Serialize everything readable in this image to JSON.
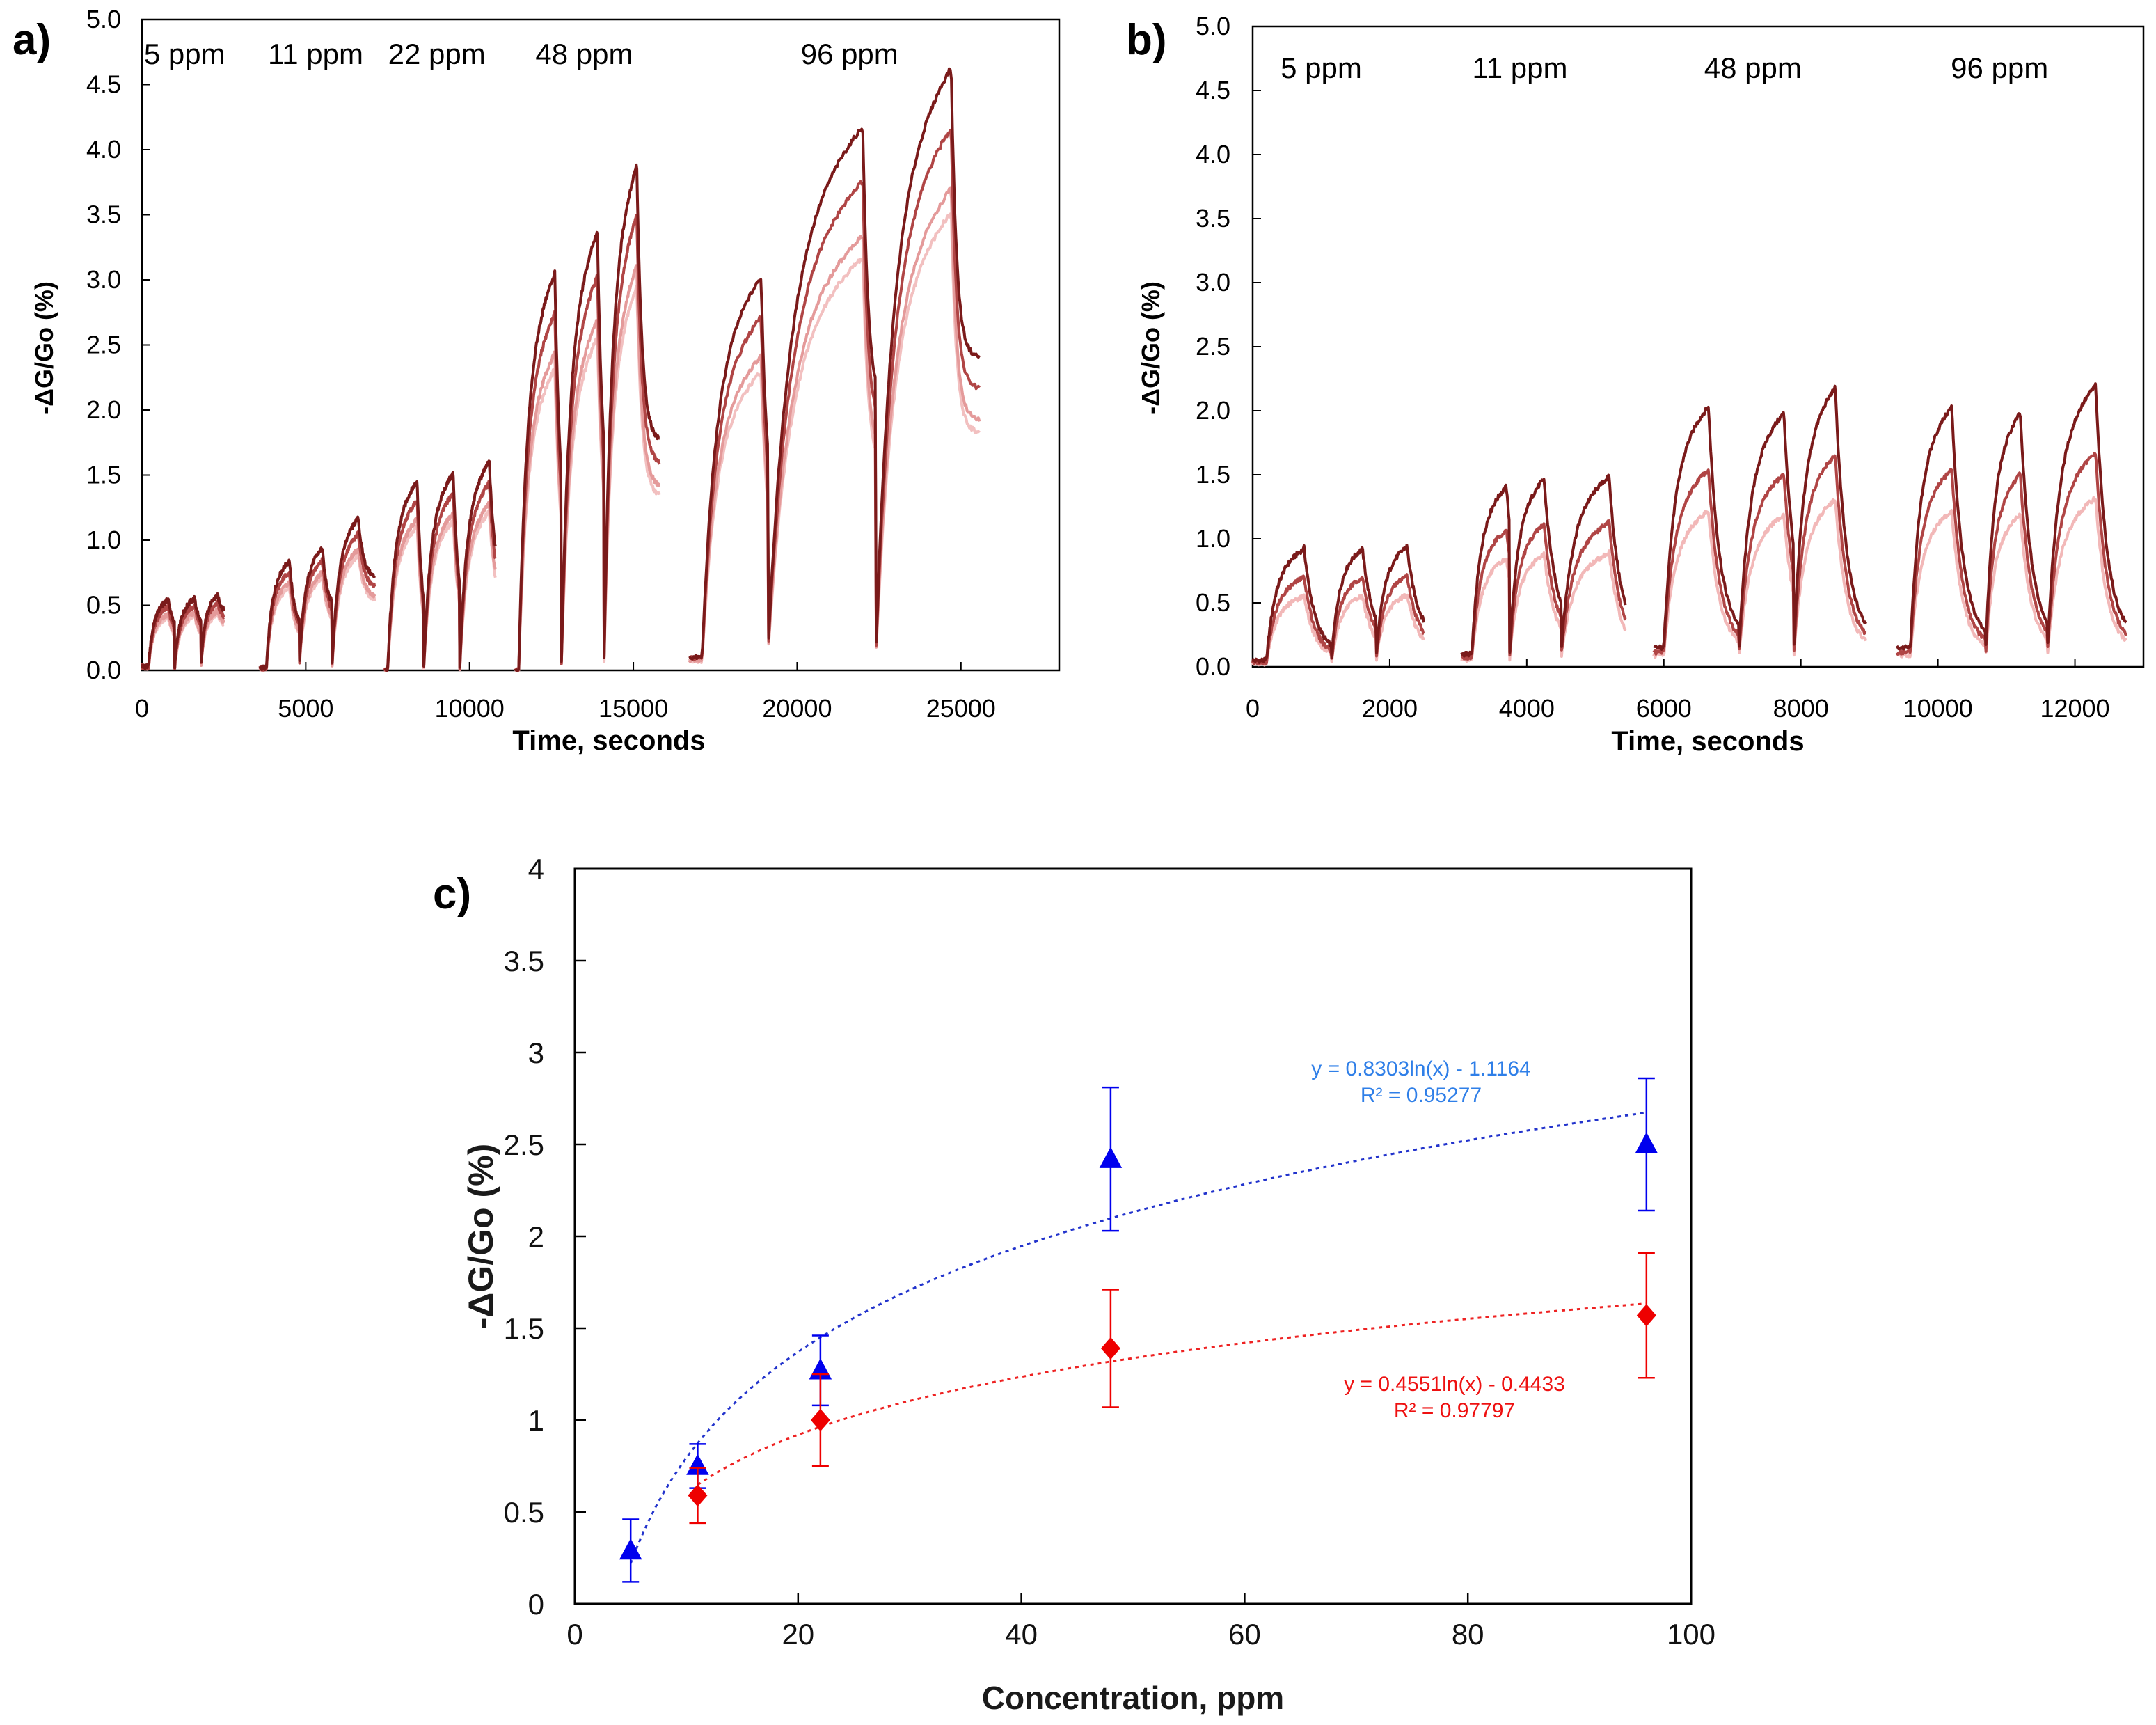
{
  "chart_data": [
    {
      "panel": "a)",
      "type": "line",
      "xlabel": "Time, seconds",
      "ylabel": "-ΔG/Go (%)",
      "xlim": [
        0,
        28000
      ],
      "ylim": [
        0,
        5
      ],
      "xticks": [
        0,
        5000,
        10000,
        15000,
        20000,
        25000
      ],
      "yticks": [
        "0.0",
        "0.5",
        "1.0",
        "1.5",
        "2.0",
        "2.5",
        "3.0",
        "3.5",
        "4.0",
        "4.5",
        "5.0"
      ],
      "grid": false,
      "concentration_labels": [
        {
          "text": "5 ppm",
          "x": 1300
        },
        {
          "text": "11 ppm",
          "x": 5300
        },
        {
          "text": "22 ppm",
          "x": 9000
        },
        {
          "text": "48 ppm",
          "x": 13500
        },
        {
          "text": "96 ppm",
          "x": 21600
        }
      ],
      "series_colors": [
        "#7a1a1a",
        "#b04545",
        "#e49a9a",
        "#f2c0c0"
      ],
      "series_scales": [
        1.0,
        0.9,
        0.8,
        0.76
      ],
      "segments": [
        {
          "start": 0,
          "end": 2500,
          "base": 0.03,
          "pulses": [
            {
              "on": 200,
              "off": 800,
              "peak": 0.55,
              "rec": 0.28
            },
            {
              "on": 1000,
              "off": 1600,
              "peak": 0.56,
              "rec": 0.3
            },
            {
              "on": 1800,
              "off": 2300,
              "peak": 0.58,
              "rec": 0.42
            }
          ]
        },
        {
          "start": 3600,
          "end": 7100,
          "base": 0.02,
          "pulses": [
            {
              "on": 3800,
              "off": 4500,
              "peak": 0.85,
              "rec": 0.3
            },
            {
              "on": 4800,
              "off": 5500,
              "peak": 0.95,
              "rec": 0.45
            },
            {
              "on": 5800,
              "off": 6600,
              "peak": 1.18,
              "rec": 0.7
            }
          ]
        },
        {
          "start": 7400,
          "end": 10800,
          "base": 0.0,
          "pulses": [
            {
              "on": 7500,
              "off": 8400,
              "peak": 1.47,
              "rec": 0.15
            },
            {
              "on": 8600,
              "off": 9500,
              "peak": 1.53,
              "rec": 0.3
            },
            {
              "on": 9700,
              "off": 10600,
              "peak": 1.62,
              "rec": 0.65
            }
          ]
        },
        {
          "start": 11400,
          "end": 15800,
          "base": 0.0,
          "pulses": [
            {
              "on": 11500,
              "off": 12600,
              "peak": 3.08,
              "rec": 0.9
            },
            {
              "on": 12800,
              "off": 13900,
              "peak": 3.4,
              "rec": 1.1
            },
            {
              "on": 14100,
              "off": 15100,
              "peak": 3.92,
              "rec": 1.75
            }
          ]
        },
        {
          "start": 16700,
          "end": 25600,
          "base": 0.1,
          "pulses": [
            {
              "on": 17100,
              "off": 18900,
              "peak": 3.05,
              "rec": 1.2
            },
            {
              "on": 19100,
              "off": 22000,
              "peak": 4.22,
              "rec": 2.05
            },
            {
              "on": 22400,
              "off": 24700,
              "peak": 4.68,
              "rec": 2.4
            }
          ]
        }
      ]
    },
    {
      "panel": "b)",
      "type": "line",
      "xlabel": "Time, seconds",
      "ylabel": "-ΔG/Go (%)",
      "xlim": [
        0,
        13000
      ],
      "ylim": [
        0,
        5
      ],
      "xticks": [
        0,
        2000,
        4000,
        6000,
        8000,
        10000,
        12000
      ],
      "yticks": [
        "0.0",
        "0.5",
        "1.0",
        "1.5",
        "2.0",
        "2.5",
        "3.0",
        "3.5",
        "4.0",
        "4.5",
        "5.0"
      ],
      "grid": false,
      "concentration_labels": [
        {
          "text": "5 ppm",
          "x": 1000
        },
        {
          "text": "11 ppm",
          "x": 3900
        },
        {
          "text": "48 ppm",
          "x": 7300
        },
        {
          "text": "96 ppm",
          "x": 10900
        }
      ],
      "series_colors": [
        "#7a1a1a",
        "#b04545",
        "#f2b8b8"
      ],
      "series_scales": [
        1.0,
        0.76,
        0.6
      ],
      "segments": [
        {
          "start": 0,
          "end": 2500,
          "base": 0.05,
          "pulses": [
            {
              "on": 200,
              "off": 750,
              "peak": 0.93,
              "rec": 0.1
            },
            {
              "on": 1150,
              "off": 1600,
              "peak": 0.93,
              "rec": 0.15
            },
            {
              "on": 1800,
              "off": 2250,
              "peak": 0.95,
              "rec": 0.2
            }
          ]
        },
        {
          "start": 3050,
          "end": 5450,
          "base": 0.1,
          "pulses": [
            {
              "on": 3200,
              "off": 3700,
              "peak": 1.42,
              "rec": 0.3
            },
            {
              "on": 3750,
              "off": 4250,
              "peak": 1.48,
              "rec": 0.25
            },
            {
              "on": 4500,
              "off": 5200,
              "peak": 1.5,
              "rec": 0.2
            }
          ]
        },
        {
          "start": 5850,
          "end": 8950,
          "base": 0.15,
          "pulses": [
            {
              "on": 6000,
              "off": 6650,
              "peak": 2.05,
              "rec": 0.22
            },
            {
              "on": 7100,
              "off": 7750,
              "peak": 2.0,
              "rec": 0.22
            },
            {
              "on": 7900,
              "off": 8500,
              "peak": 2.2,
              "rec": 0.22
            }
          ]
        },
        {
          "start": 9400,
          "end": 12750,
          "base": 0.15,
          "pulses": [
            {
              "on": 9600,
              "off": 10200,
              "peak": 2.05,
              "rec": 0.2
            },
            {
              "on": 10700,
              "off": 11200,
              "peak": 2.0,
              "rec": 0.2
            },
            {
              "on": 11600,
              "off": 12300,
              "peak": 2.22,
              "rec": 0.22
            }
          ]
        }
      ]
    },
    {
      "panel": "c)",
      "type": "scatter",
      "xlabel": "Concentration, ppm",
      "ylabel": "-ΔG/Go (%)",
      "xlim": [
        0,
        100
      ],
      "ylim": [
        0,
        4
      ],
      "xticks": [
        "0",
        "20",
        "40",
        "60",
        "80",
        "100"
      ],
      "yticks": [
        "0",
        "0.5",
        "1",
        "1.5",
        "2",
        "2.5",
        "3",
        "3.5",
        "4"
      ],
      "grid": false,
      "series": [
        {
          "name": "triangle series",
          "color": "#0000ee",
          "marker": "triangle",
          "points": [
            {
              "x": 5,
              "y": 0.29,
              "err": 0.17
            },
            {
              "x": 11,
              "y": 0.75,
              "err": 0.12
            },
            {
              "x": 22,
              "y": 1.27,
              "err": 0.19
            },
            {
              "x": 48,
              "y": 2.42,
              "err": 0.39
            },
            {
              "x": 96,
              "y": 2.5,
              "err": 0.36
            }
          ],
          "fit": {
            "a": 0.8303,
            "b": -1.1164,
            "from": 5,
            "to": 96,
            "color": "#2233cc"
          },
          "equation": "y = 0.8303ln(x) - 1.1164",
          "r2": "R² = 0.95277",
          "label_color": "#2f7fe8"
        },
        {
          "name": "diamond series",
          "color": "#ee0000",
          "marker": "diamond",
          "points": [
            {
              "x": 11,
              "y": 0.59,
              "err": 0.15
            },
            {
              "x": 22,
              "y": 1.0,
              "err": 0.25
            },
            {
              "x": 48,
              "y": 1.39,
              "err": 0.32
            },
            {
              "x": 96,
              "y": 1.57,
              "err": 0.34
            }
          ],
          "fit": {
            "a": 0.4551,
            "b": -0.4433,
            "from": 11,
            "to": 96,
            "color": "#ee2222"
          },
          "equation": "y = 0.4551ln(x) - 0.4433",
          "r2": "R² = 0.97797",
          "label_color": "#ee1111"
        }
      ]
    }
  ]
}
